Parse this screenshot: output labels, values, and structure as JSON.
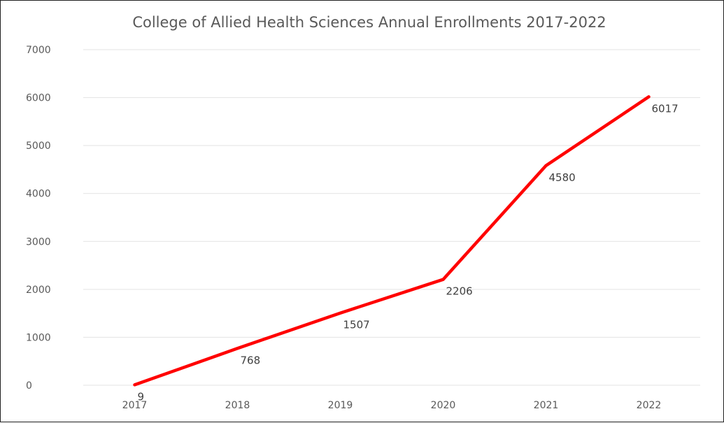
{
  "chart_data": {
    "type": "line",
    "title": "College of Allied Health Sciences Annual Enrollments 2017-2022",
    "xlabel": "",
    "ylabel": "",
    "categories": [
      "2017",
      "2018",
      "2019",
      "2020",
      "2021",
      "2022"
    ],
    "series": [
      {
        "values": [
          9,
          768,
          1507,
          2206,
          4580,
          6017
        ],
        "data_labels": [
          "9",
          "768",
          "1507",
          "2206",
          "4580",
          "6017"
        ],
        "color": "#ff0000"
      }
    ],
    "ylim": [
      0,
      7000
    ],
    "yticks": [
      "0",
      "1000",
      "2000",
      "3000",
      "4000",
      "5000",
      "6000",
      "7000"
    ],
    "grid": true,
    "legend": "none"
  }
}
